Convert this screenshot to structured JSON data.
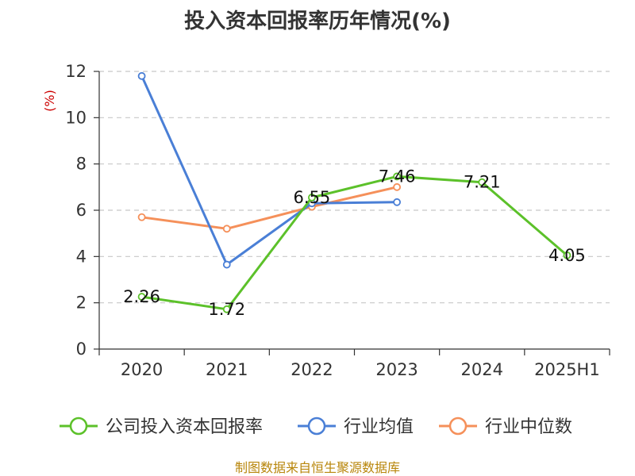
{
  "chart_data": {
    "type": "line",
    "title": "投入资本回报率历年情况(%)",
    "ylabel": "(%)",
    "categories": [
      "2020",
      "2021",
      "2022",
      "2023",
      "2024",
      "2025H1"
    ],
    "ylim": [
      0,
      12
    ],
    "yticks": [
      "0",
      "2",
      "4",
      "6",
      "8",
      "10",
      "12"
    ],
    "grid": true,
    "legend_position": "bottom",
    "series": [
      {
        "name": "公司投入资本回报率",
        "color": "#5cc12a",
        "values": [
          2.26,
          1.72,
          6.55,
          7.46,
          7.21,
          4.05
        ],
        "labels": [
          "2.26",
          "1.72",
          "6.55",
          "7.46",
          "7.21",
          "4.05"
        ]
      },
      {
        "name": "行业均值",
        "color": "#4a7fd6",
        "values": [
          11.8,
          3.65,
          6.3,
          6.35,
          null,
          null
        ]
      },
      {
        "name": "行业中位数",
        "color": "#f5905a",
        "values": [
          5.7,
          5.2,
          6.15,
          7.0,
          null,
          null
        ]
      }
    ]
  },
  "footer": {
    "source": "制图数据来自恒生聚源数据库"
  }
}
